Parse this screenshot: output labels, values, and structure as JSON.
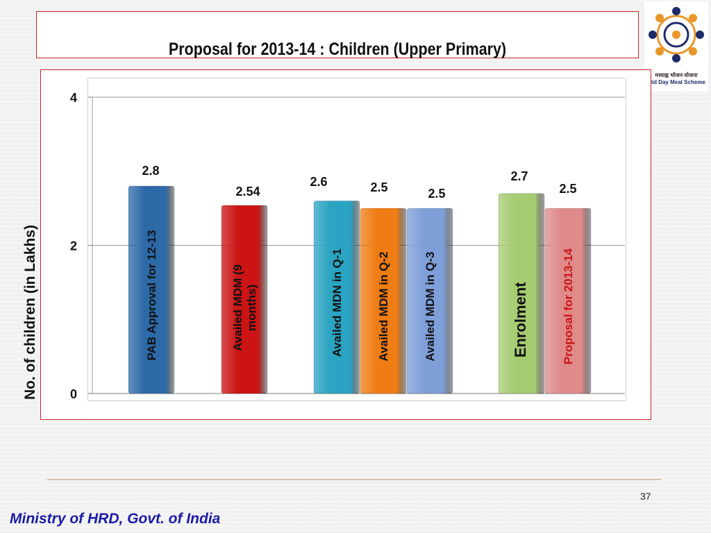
{
  "slide": {
    "title": "Proposal for 2013-14 :  Children (Upper Primary)",
    "page_number": "37",
    "footer": "Ministry of HRD, Govt. of India"
  },
  "logo": {
    "caption_hindi": "मध्याह्न भोजन योजना",
    "caption_english": "Mid Day Meal Scheme"
  },
  "chart_data": {
    "type": "bar",
    "categories": [
      "PAB Approval for 12-13",
      "Availed MDM (9 months)",
      "Availed MDN in Q-1",
      "Availed MDM in Q-2",
      "Availed MDM in Q-3",
      "Enrolment",
      "Proposal for 2013-14"
    ],
    "values": [
      2.8,
      2.54,
      2.6,
      2.5,
      2.5,
      2.7,
      2.5
    ],
    "value_labels": [
      "2.8",
      "2.54",
      "2.6",
      "2.5",
      "2.5",
      "2.7",
      "2.5"
    ],
    "colors": [
      "#2c6aa8",
      "#cc1414",
      "#2aa4c2",
      "#f07c14",
      "#7e9fd8",
      "#a6cc72",
      "#e08a8a"
    ],
    "text_colors": [
      "#111111",
      "#111111",
      "#111111",
      "#111111",
      "#111111",
      "#111111",
      "#cc1414"
    ],
    "ylabel": "No. of children (in Lakhs)",
    "xlabel": "",
    "ylim": [
      0,
      4
    ],
    "yticks": [
      0,
      2,
      4
    ],
    "grid": true,
    "legend": "none"
  }
}
